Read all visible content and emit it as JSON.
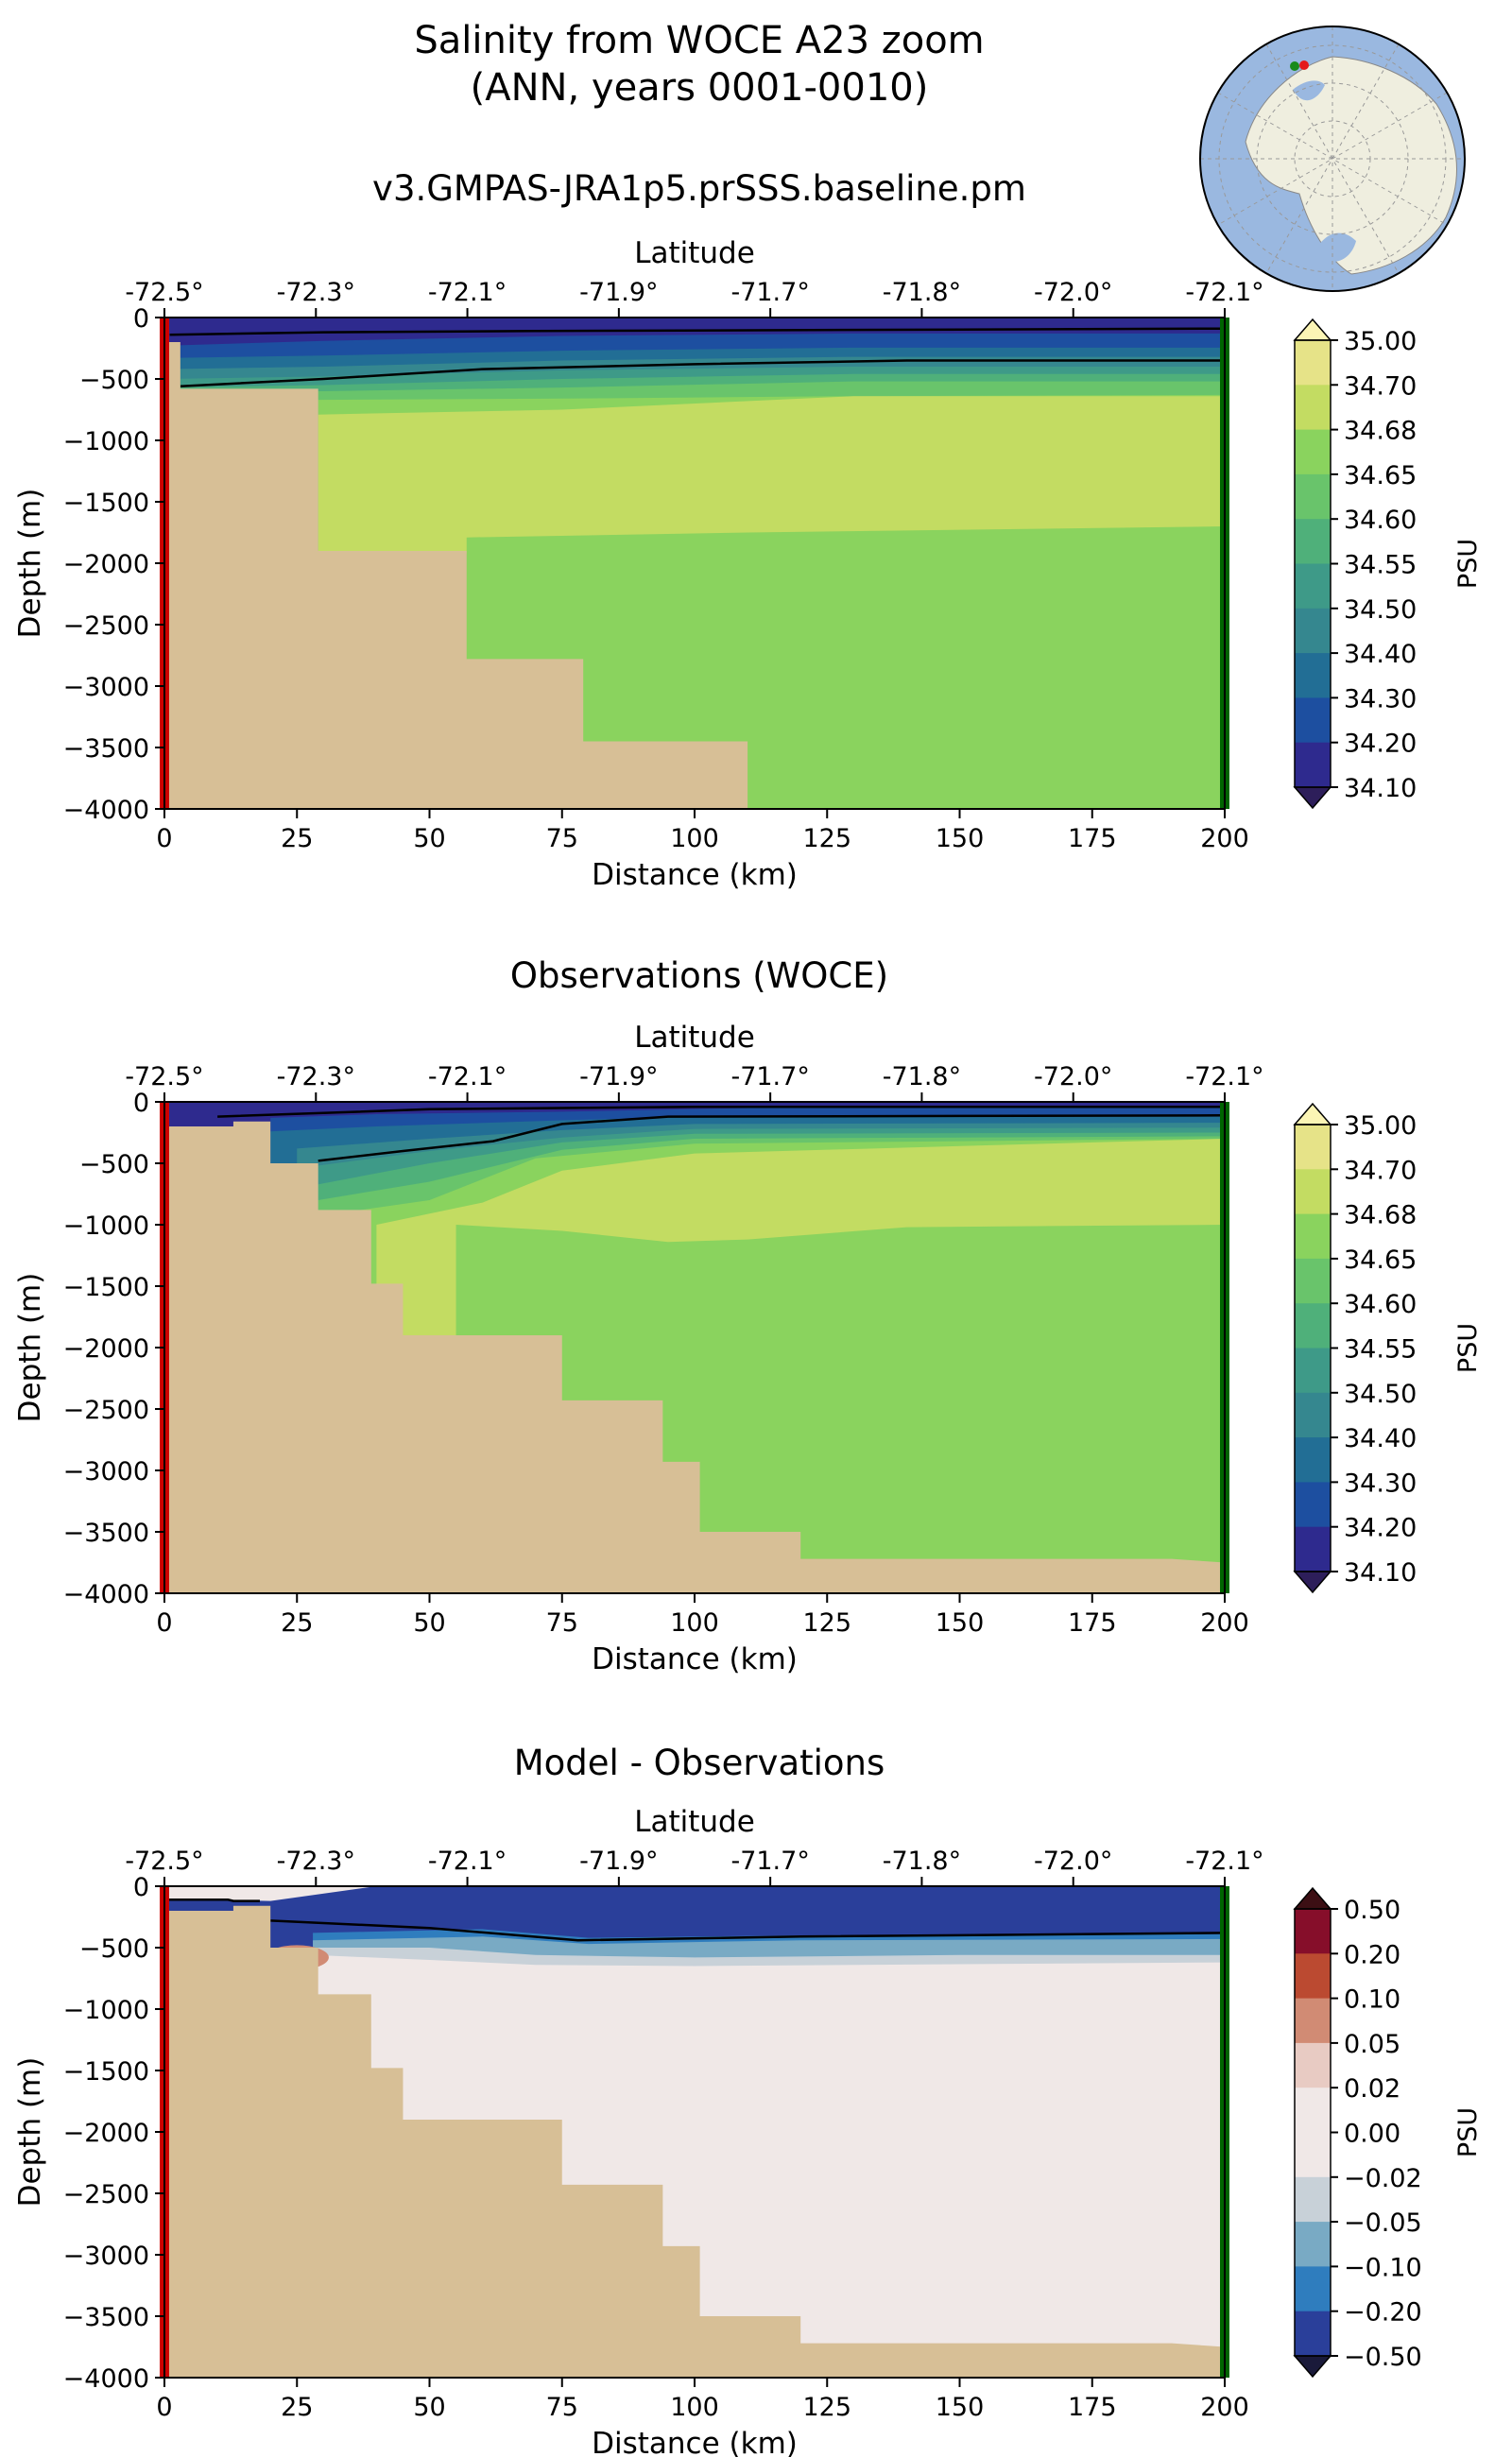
{
  "figure": {
    "title_line1": "Salinity from WOCE A23 zoom",
    "title_line2": "(ANN, years 0001-0010)",
    "subtitle": "v3.GMPAS-JRA1p5.prSSS.baseline.pm"
  },
  "colors": {
    "land": "#d7bf96",
    "seabed": "#d7bf96",
    "start_marker": "#cc0000",
    "end_marker": "#006400",
    "contour": "#000000",
    "map_ocean": "#9ab8e0",
    "map_land": "#efeedf",
    "map_point_start": "#e41a1c",
    "map_point_end": "#1a8a1a"
  },
  "chart_data": [
    {
      "type": "heatmap",
      "name": "model",
      "title": "",
      "xlabel": "Distance (km)",
      "ylabel": "Depth (m)",
      "top_axis_label": "Latitude",
      "xlim": [
        0,
        200
      ],
      "ylim": [
        -4000,
        0
      ],
      "x_ticks": [
        "0",
        "25",
        "50",
        "75",
        "100",
        "125",
        "150",
        "175",
        "200"
      ],
      "y_ticks": [
        "0",
        "−500",
        "−1000",
        "−1500",
        "−2000",
        "−2500",
        "−3000",
        "−3500",
        "−4000"
      ],
      "top_ticks": [
        "-72.5°",
        "-72.3°",
        "-72.1°",
        "-71.9°",
        "-71.7°",
        "-71.8°",
        "-72.0°",
        "-72.1°"
      ],
      "colorbar_label": "PSU",
      "colorbar_ticks": [
        "35.00",
        "34.70",
        "34.68",
        "34.65",
        "34.60",
        "34.55",
        "34.50",
        "34.40",
        "34.30",
        "34.20",
        "34.10"
      ],
      "colorbar_colors": [
        "#e6e388",
        "#c3dc62",
        "#8ad35e",
        "#69c46b",
        "#4fb07a",
        "#3e9a88",
        "#35878f",
        "#226e95",
        "#1d4fa0",
        "#2e2a8e"
      ],
      "colorbar_extend": [
        "#fbf5b5",
        "#2d1e5a"
      ],
      "bathymetry": [
        [
          0,
          200
        ],
        [
          3,
          200
        ],
        [
          3,
          580
        ],
        [
          29,
          580
        ],
        [
          29,
          1900
        ],
        [
          57,
          1900
        ],
        [
          57,
          2780
        ],
        [
          79,
          2780
        ],
        [
          79,
          3450
        ],
        [
          110,
          3450
        ],
        [
          110,
          4000
        ],
        [
          200,
          4000
        ]
      ],
      "layers": [
        {
          "color": "#2e2a8e",
          "top": [
            [
              0,
              0
            ],
            [
              200,
              0
            ]
          ]
        },
        {
          "color": "#1d4fa0",
          "top": [
            [
              0,
              230
            ],
            [
              30,
              190
            ],
            [
              75,
              150
            ],
            [
              130,
              130
            ],
            [
              200,
              130
            ]
          ]
        },
        {
          "color": "#226e95",
          "top": [
            [
              0,
              330
            ],
            [
              30,
              310
            ],
            [
              75,
              270
            ],
            [
              130,
              245
            ],
            [
              200,
              245
            ]
          ]
        },
        {
          "color": "#35878f",
          "top": [
            [
              0,
              420
            ],
            [
              30,
              400
            ],
            [
              75,
              350
            ],
            [
              130,
              320
            ],
            [
              200,
              320
            ]
          ]
        },
        {
          "color": "#3e9a88",
          "top": [
            [
              0,
              500
            ],
            [
              30,
              480
            ],
            [
              75,
              430
            ],
            [
              130,
              400
            ],
            [
              200,
              400
            ]
          ]
        },
        {
          "color": "#4fb07a",
          "top": [
            [
              0,
              570
            ],
            [
              30,
              550
            ],
            [
              75,
              500
            ],
            [
              130,
              460
            ],
            [
              200,
              460
            ]
          ]
        },
        {
          "color": "#69c46b",
          "top": [
            [
              0,
              600
            ],
            [
              30,
              600
            ],
            [
              75,
              570
            ],
            [
              130,
              520
            ],
            [
              200,
              520
            ]
          ]
        },
        {
          "color": "#8ad35e",
          "top": [
            [
              29,
              670
            ],
            [
              75,
              660
            ],
            [
              130,
              640
            ],
            [
              200,
              630
            ]
          ]
        },
        {
          "color": "#c3dc62",
          "top": [
            [
              29,
              790
            ],
            [
              75,
              750
            ],
            [
              130,
              640
            ],
            [
              200,
              640
            ]
          ]
        },
        {
          "color": "#8ad35e",
          "top": [
            [
              29,
              1920
            ],
            [
              57,
              1920
            ],
            [
              57,
              1790
            ],
            [
              110,
              1750
            ],
            [
              200,
              1700
            ]
          ]
        }
      ],
      "contour_line": [
        [
          3,
          560
        ],
        [
          30,
          500
        ],
        [
          60,
          420
        ],
        [
          100,
          380
        ],
        [
          140,
          350
        ],
        [
          200,
          350
        ]
      ],
      "contour_line2": [
        [
          1,
          140
        ],
        [
          30,
          120
        ],
        [
          70,
          110
        ],
        [
          200,
          90
        ]
      ],
      "contour_value": 34.3
    },
    {
      "type": "heatmap",
      "name": "observations",
      "title": "Observations (WOCE)",
      "xlabel": "Distance (km)",
      "ylabel": "Depth (m)",
      "top_axis_label": "Latitude",
      "xlim": [
        0,
        200
      ],
      "ylim": [
        -4000,
        0
      ],
      "x_ticks": [
        "0",
        "25",
        "50",
        "75",
        "100",
        "125",
        "150",
        "175",
        "200"
      ],
      "y_ticks": [
        "0",
        "−500",
        "−1000",
        "−1500",
        "−2000",
        "−2500",
        "−3000",
        "−3500",
        "−4000"
      ],
      "top_ticks": [
        "-72.5°",
        "-72.3°",
        "-72.1°",
        "-71.9°",
        "-71.7°",
        "-71.8°",
        "-72.0°",
        "-72.1°"
      ],
      "colorbar_label": "PSU",
      "colorbar_ticks": [
        "35.00",
        "34.70",
        "34.68",
        "34.65",
        "34.60",
        "34.55",
        "34.50",
        "34.40",
        "34.30",
        "34.20",
        "34.10"
      ],
      "colorbar_colors": [
        "#e6e388",
        "#c3dc62",
        "#8ad35e",
        "#69c46b",
        "#4fb07a",
        "#3e9a88",
        "#35878f",
        "#226e95",
        "#1d4fa0",
        "#2e2a8e"
      ],
      "colorbar_extend": [
        "#fbf5b5",
        "#2d1e5a"
      ],
      "bathymetry": [
        [
          0,
          200
        ],
        [
          13,
          200
        ],
        [
          13,
          160
        ],
        [
          20,
          160
        ],
        [
          20,
          500
        ],
        [
          29,
          500
        ],
        [
          29,
          880
        ],
        [
          39,
          880
        ],
        [
          39,
          1480
        ],
        [
          45,
          1480
        ],
        [
          45,
          1900
        ],
        [
          75,
          1900
        ],
        [
          75,
          2430
        ],
        [
          94,
          2430
        ],
        [
          94,
          2930
        ],
        [
          101,
          2930
        ],
        [
          101,
          3500
        ],
        [
          120,
          3500
        ],
        [
          120,
          3720
        ],
        [
          190,
          3720
        ],
        [
          200,
          3750
        ]
      ],
      "layers": [
        {
          "color": "#2e2a8e",
          "top": [
            [
              0,
              0
            ],
            [
              200,
              0
            ]
          ]
        },
        {
          "color": "#1d4fa0",
          "top": [
            [
              20,
              130
            ],
            [
              40,
              100
            ],
            [
              75,
              80
            ],
            [
              110,
              50
            ],
            [
              200,
              50
            ]
          ]
        },
        {
          "color": "#226e95",
          "top": [
            [
              20,
              240
            ],
            [
              40,
              200
            ],
            [
              75,
              150
            ],
            [
              100,
              120
            ],
            [
              200,
              120
            ]
          ]
        },
        {
          "color": "#35878f",
          "top": [
            [
              25,
              380
            ],
            [
              50,
              300
            ],
            [
              75,
              230
            ],
            [
              100,
              180
            ],
            [
              200,
              170
            ]
          ]
        },
        {
          "color": "#3e9a88",
          "top": [
            [
              27,
              530
            ],
            [
              50,
              400
            ],
            [
              75,
              290
            ],
            [
              100,
              220
            ],
            [
              200,
              210
            ]
          ]
        },
        {
          "color": "#4fb07a",
          "top": [
            [
              28,
              680
            ],
            [
              50,
              500
            ],
            [
              75,
              330
            ],
            [
              100,
              260
            ],
            [
              200,
              250
            ]
          ]
        },
        {
          "color": "#69c46b",
          "top": [
            [
              29,
              800
            ],
            [
              50,
              650
            ],
            [
              75,
              390
            ],
            [
              100,
              300
            ],
            [
              200,
              280
            ]
          ]
        },
        {
          "color": "#8ad35e",
          "top": [
            [
              29,
              930
            ],
            [
              50,
              800
            ],
            [
              70,
              460
            ],
            [
              100,
              340
            ],
            [
              200,
              300
            ]
          ]
        },
        {
          "color": "#c3dc62",
          "top": [
            [
              40,
              1000
            ],
            [
              60,
              820
            ],
            [
              75,
              560
            ],
            [
              100,
              420
            ],
            [
              200,
              300
            ]
          ]
        },
        {
          "color": "#8ad35e",
          "top": [
            [
              55,
              1000
            ],
            [
              75,
              1050
            ],
            [
              95,
              1140
            ],
            [
              110,
              1120
            ],
            [
              140,
              1020
            ],
            [
              200,
              1000
            ]
          ]
        }
      ],
      "contour_line": [
        [
          29,
          480
        ],
        [
          45,
          400
        ],
        [
          62,
          320
        ],
        [
          75,
          180
        ],
        [
          95,
          120
        ],
        [
          200,
          110
        ]
      ],
      "contour_line2": [
        [
          10,
          120
        ],
        [
          50,
          60
        ],
        [
          100,
          40
        ],
        [
          200,
          40
        ]
      ],
      "contour_value": 34.3
    },
    {
      "type": "heatmap",
      "name": "difference",
      "title": "Model - Observations",
      "xlabel": "Distance (km)",
      "ylabel": "Depth (m)",
      "top_axis_label": "Latitude",
      "xlim": [
        0,
        200
      ],
      "ylim": [
        -4000,
        0
      ],
      "x_ticks": [
        "0",
        "25",
        "50",
        "75",
        "100",
        "125",
        "150",
        "175",
        "200"
      ],
      "y_ticks": [
        "0",
        "−500",
        "−1000",
        "−1500",
        "−2000",
        "−2500",
        "−3000",
        "−3500",
        "−4000"
      ],
      "top_ticks": [
        "-72.5°",
        "-72.3°",
        "-72.1°",
        "-71.9°",
        "-71.7°",
        "-71.8°",
        "-72.0°",
        "-72.1°"
      ],
      "colorbar_label": "PSU",
      "colorbar_ticks": [
        "0.50",
        "0.20",
        "0.10",
        "0.05",
        "0.02",
        "0.00",
        "−0.02",
        "−0.05",
        "−0.10",
        "−0.20",
        "−0.50"
      ],
      "colorbar_colors": [
        "#860e2a",
        "#bb4a31",
        "#d18b74",
        "#e8cbc3",
        "#f0e8e7",
        "#f0e8e7",
        "#c8d1d8",
        "#79aac4",
        "#2f7dbe",
        "#2a3f9a"
      ],
      "colorbar_extend": [
        "#3c0f14",
        "#1a1a3a"
      ],
      "bathymetry": [
        [
          0,
          200
        ],
        [
          13,
          200
        ],
        [
          13,
          160
        ],
        [
          20,
          160
        ],
        [
          20,
          500
        ],
        [
          29,
          500
        ],
        [
          29,
          880
        ],
        [
          39,
          880
        ],
        [
          39,
          1480
        ],
        [
          45,
          1480
        ],
        [
          45,
          1900
        ],
        [
          75,
          1900
        ],
        [
          75,
          2430
        ],
        [
          94,
          2430
        ],
        [
          94,
          2930
        ],
        [
          101,
          2930
        ],
        [
          101,
          3500
        ],
        [
          120,
          3500
        ],
        [
          120,
          3720
        ],
        [
          190,
          3720
        ],
        [
          200,
          3750
        ]
      ],
      "layers": [
        {
          "color": "#f0e8e7",
          "top": [
            [
              0,
              0
            ],
            [
              200,
              0
            ]
          ]
        },
        {
          "color": "#2a3f9a",
          "top": [
            [
              0,
              100
            ],
            [
              20,
              120
            ],
            [
              40,
              0
            ],
            [
              200,
              0
            ]
          ]
        },
        {
          "color": "#2f7dbe",
          "top": [
            [
              28,
              380
            ],
            [
              60,
              350
            ],
            [
              80,
              420
            ],
            [
              120,
              400
            ],
            [
              200,
              390
            ]
          ]
        },
        {
          "color": "#79aac4",
          "top": [
            [
              28,
              440
            ],
            [
              60,
              410
            ],
            [
              80,
              470
            ],
            [
              120,
              440
            ],
            [
              200,
              430
            ]
          ]
        },
        {
          "color": "#c8d1d8",
          "top": [
            [
              28,
              500
            ],
            [
              50,
              500
            ],
            [
              70,
              560
            ],
            [
              100,
              580
            ],
            [
              150,
              560
            ],
            [
              200,
              560
            ]
          ]
        },
        {
          "color": "#f0e8e7",
          "top": [
            [
              28,
              560
            ],
            [
              50,
              600
            ],
            [
              70,
              640
            ],
            [
              100,
              650
            ],
            [
              200,
              620
            ]
          ]
        }
      ],
      "blob": {
        "color": "#d18b74",
        "cx": 25,
        "cy": 580,
        "rx": 6,
        "ry": 100
      },
      "contour_line": [
        [
          20,
          280
        ],
        [
          50,
          340
        ],
        [
          78,
          440
        ],
        [
          120,
          410
        ],
        [
          200,
          380
        ]
      ],
      "contour_line2": [
        [
          0,
          110
        ],
        [
          12,
          110
        ],
        [
          13,
          120
        ],
        [
          18,
          120
        ]
      ],
      "contour_value": 0.0
    }
  ],
  "inset_map": {
    "label": ""
  }
}
